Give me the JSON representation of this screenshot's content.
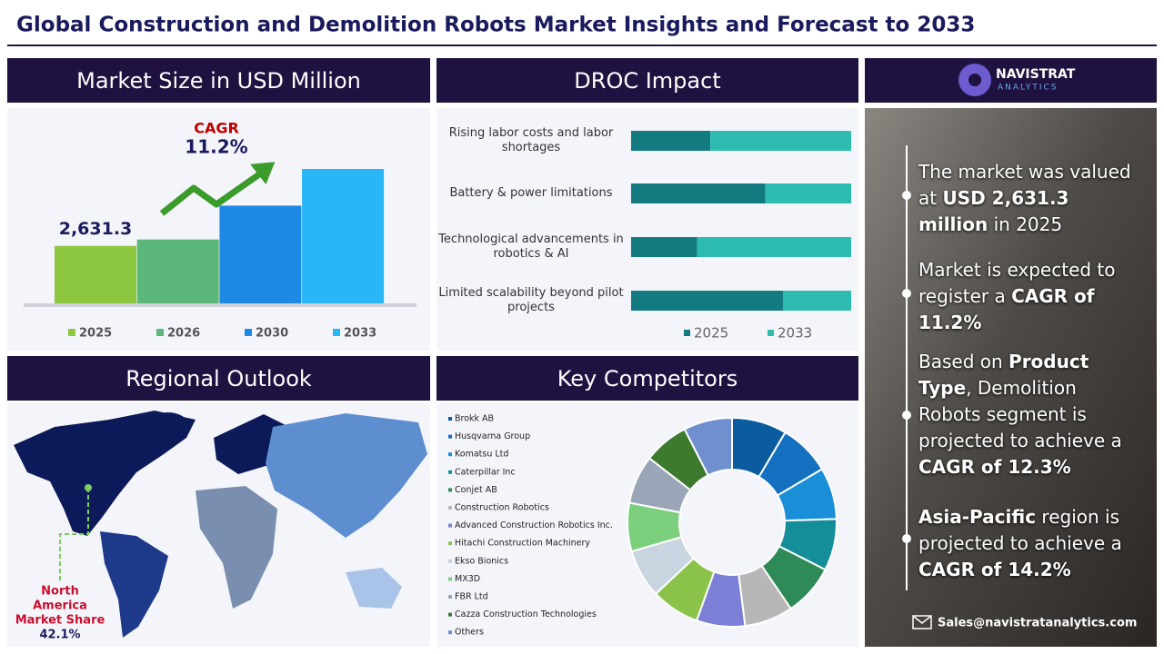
{
  "header": {
    "title": "Global Construction and Demolition Robots Market Insights and Forecast to 2033"
  },
  "panels": {
    "market_size": "Market Size in USD Million",
    "droc": "DROC Impact",
    "regional": "Regional Outlook",
    "competitors": "Key Competitors"
  },
  "chart_data": [
    {
      "type": "bar",
      "categories": [
        "2025",
        "2026",
        "2030",
        "2033"
      ],
      "values": [
        2631.3,
        2926,
        4474,
        6153
      ],
      "value_labels": [
        "2,631.3",
        null,
        null,
        null
      ],
      "colors": [
        "#8dc63f",
        "#5cb87a",
        "#1e88e5",
        "#29b6f6"
      ],
      "annotations": {
        "cagr_label": "CAGR",
        "cagr_value": "11.2%"
      }
    },
    {
      "type": "stacked_barh",
      "categories": [
        "Rising labor costs and labor shortages",
        "Battery & power limitations",
        "Technological advancements in robotics & AI",
        "Limited scalability beyond pilot projects"
      ],
      "series": [
        {
          "name": "2025",
          "color": "#137a7f",
          "values": [
            36,
            61,
            30,
            69
          ]
        },
        {
          "name": "2033",
          "color": "#2fbcb0",
          "values": [
            64,
            39,
            70,
            31
          ]
        }
      ],
      "xlim": [
        0,
        100
      ]
    },
    {
      "type": "donut",
      "categories": [
        "Brokk AB",
        "Husqvarna Group",
        "Komatsu Ltd",
        "Caterpillar Inc",
        "Conjet AB",
        "Construction Robotics",
        "Advanced Construction Robotics Inc.",
        "Hitachi Construction Machinery",
        "Ekso Bionics",
        "MX3D",
        "FBR Ltd",
        "Cazza Construction Technologies",
        "Others"
      ],
      "values": [
        8.5,
        8,
        8,
        8,
        8,
        7.5,
        7.5,
        7.5,
        7.5,
        7.5,
        7.5,
        7,
        7.5
      ],
      "colors": [
        "#0a5c9e",
        "#1470c0",
        "#1a8fd8",
        "#148f9a",
        "#2e8b57",
        "#b7b7b7",
        "#7b7fd6",
        "#8bc34a",
        "#c8d4e0",
        "#7ccf7c",
        "#9aa5b8",
        "#3d7a2e",
        "#6f8fcf"
      ]
    }
  ],
  "regional": {
    "label_lines": [
      "North",
      "America",
      "Market Share"
    ],
    "share": "42.1%"
  },
  "sidebar": {
    "brand": "NAVISTRAT",
    "brand_sub": "ANALYTICS",
    "bullets": [
      {
        "parts": [
          {
            "text": "The market was valued at "
          },
          {
            "text": "USD 2,631.3 million",
            "bold": true
          },
          {
            "text": " in 2025"
          }
        ]
      },
      {
        "parts": [
          {
            "text": "Market is expected to register a "
          },
          {
            "text": "CAGR of 11.2%",
            "bold": true
          }
        ]
      },
      {
        "parts": [
          {
            "text": "Based on "
          },
          {
            "text": "Product Type",
            "bold": true
          },
          {
            "text": ", Demolition Robots segment is projected to achieve a "
          },
          {
            "text": "CAGR of 12.3%",
            "bold": true
          }
        ]
      },
      {
        "parts": [
          {
            "text": "Asia-Pacific",
            "bold": true
          },
          {
            "text": " region is projected to achieve a "
          },
          {
            "text": "CAGR of 14.2%",
            "bold": true
          }
        ]
      }
    ],
    "email": "Sales@navistratanalytics.com"
  }
}
